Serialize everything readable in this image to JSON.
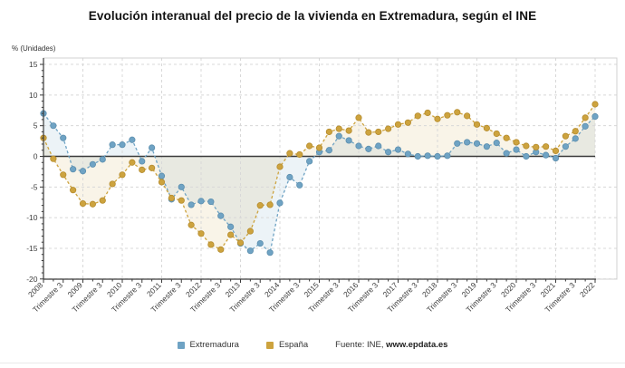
{
  "title": "Evolución interanual del precio de la vivienda en Extremadura, según el INE",
  "y_axis_unit_label": "% (Unidades)",
  "legend": {
    "extremadura_label": "Extremadura",
    "espana_label": "España"
  },
  "source": {
    "prefix": "Fuente: INE,",
    "url": "www.epdata.es"
  },
  "colors": {
    "extremadura": "#6fa3c4",
    "extremadura_edge": "#5d8fae",
    "extremadura_fill": "rgba(111,163,196,0.13)",
    "espana": "#cda33e",
    "espana_edge": "#b58c2f",
    "espana_fill": "rgba(205,163,62,0.12)",
    "grid": "#d8d8d8",
    "axis": "#3a3a3a",
    "tick_text": "#404040",
    "zero_line": "#3a3a3a"
  },
  "chart_data": {
    "type": "line",
    "title": "Evolución interanual del precio de la vivienda en Extremadura, según el INE",
    "ylabel": "% (Unidades)",
    "ylim": [
      -20,
      15
    ],
    "yticks": [
      15,
      10,
      5,
      0,
      -5,
      -10,
      -15,
      -20
    ],
    "grid": "dashed",
    "legend_position": "bottom",
    "x_period": "quarterly 2008Q1 - 2022Q1",
    "x_tick_labels": [
      "2008",
      "Trimestre 3",
      "2009",
      "Trimestre 3",
      "2010",
      "Trimestre 3",
      "2011",
      "Trimestre 3",
      "2012",
      "Trimestre 3",
      "2013",
      "Trimestre 3",
      "2014",
      "Trimestre 3",
      "2015",
      "Trimestre 3",
      "2016",
      "Trimestre 3",
      "2017",
      "Trimestre 3",
      "2018",
      "Trimestre 3",
      "2019",
      "Trimestre 3",
      "2020",
      "Trimestre 3",
      "2021",
      "Trimestre 3",
      "2022"
    ],
    "series": [
      {
        "name": "Extremadura",
        "values": [
          7.0,
          5.0,
          3.0,
          -2.1,
          -2.4,
          -1.3,
          -0.5,
          1.9,
          1.9,
          2.7,
          -0.8,
          1.4,
          -3.2,
          -7.0,
          -5.0,
          -7.9,
          -7.3,
          -7.4,
          -9.7,
          -11.5,
          -14.2,
          -15.4,
          -14.2,
          -15.7,
          -7.6,
          -3.4,
          -4.7,
          -0.8,
          0.7,
          1.0,
          3.3,
          2.6,
          1.7,
          1.2,
          1.7,
          0.7,
          1.1,
          0.4,
          0.0,
          0.1,
          0.0,
          0.1,
          2.1,
          2.3,
          2.1,
          1.6,
          2.2,
          0.5,
          1.1,
          0.0,
          0.7,
          0.2,
          -0.3,
          1.6,
          2.9,
          4.9,
          6.5
        ]
      },
      {
        "name": "España",
        "values": [
          3.0,
          -0.4,
          -3.0,
          -5.5,
          -7.7,
          -7.8,
          -7.2,
          -4.5,
          -3.0,
          -1.0,
          -2.2,
          -1.9,
          -4.2,
          -6.8,
          -7.2,
          -11.2,
          -12.6,
          -14.4,
          -15.2,
          -12.8,
          -14.1,
          -12.2,
          -8.0,
          -7.9,
          -1.7,
          0.5,
          0.3,
          1.7,
          1.4,
          4.0,
          4.5,
          4.2,
          6.3,
          3.9,
          4.0,
          4.5,
          5.2,
          5.5,
          6.6,
          7.1,
          6.1,
          6.7,
          7.2,
          6.6,
          5.2,
          4.6,
          3.7,
          3.0,
          2.3,
          1.7,
          1.5,
          1.6,
          0.9,
          3.3,
          4.1,
          6.3,
          8.5
        ]
      }
    ]
  }
}
